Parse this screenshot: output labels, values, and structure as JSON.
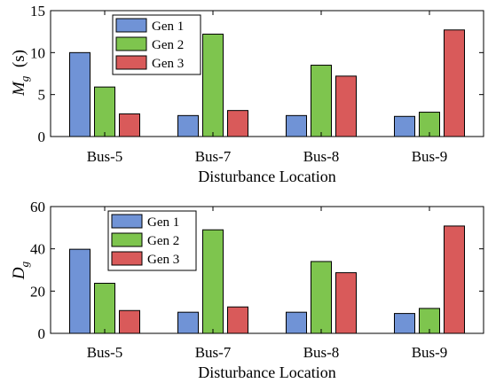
{
  "series_colors": [
    "#7093d6",
    "#7ec54e",
    "#d95a5a"
  ],
  "chart_data": [
    {
      "type": "bar",
      "categories": [
        "Bus-5",
        "Bus-7",
        "Bus-8",
        "Bus-9"
      ],
      "series": [
        {
          "name": "Gen 1",
          "values": [
            10.0,
            2.5,
            2.5,
            2.4
          ]
        },
        {
          "name": "Gen 2",
          "values": [
            5.9,
            12.2,
            8.5,
            2.9
          ]
        },
        {
          "name": "Gen 3",
          "values": [
            2.7,
            3.1,
            7.2,
            12.7
          ]
        }
      ],
      "ylabel_main": "M",
      "ylabel_sub": "g",
      "ylabel_unit": "(s)",
      "xlabel": "Disturbance Location",
      "ylim": [
        0,
        15
      ],
      "yticks": [
        "0",
        "5",
        "10",
        "15"
      ],
      "legend_position": "top-left",
      "grid": false
    },
    {
      "type": "bar",
      "categories": [
        "Bus-5",
        "Bus-7",
        "Bus-8",
        "Bus-9"
      ],
      "series": [
        {
          "name": "Gen 1",
          "values": [
            39.8,
            10.0,
            10.0,
            9.4
          ]
        },
        {
          "name": "Gen 2",
          "values": [
            23.7,
            49.0,
            34.0,
            11.8
          ]
        },
        {
          "name": "Gen 3",
          "values": [
            10.8,
            12.5,
            28.7,
            50.8
          ]
        }
      ],
      "ylabel_main": "D",
      "ylabel_sub": "g",
      "ylabel_unit": "",
      "xlabel": "Disturbance Location",
      "ylim": [
        0,
        60
      ],
      "yticks": [
        "0",
        "20",
        "40",
        "60"
      ],
      "legend_position": "top-left",
      "grid": false
    }
  ]
}
